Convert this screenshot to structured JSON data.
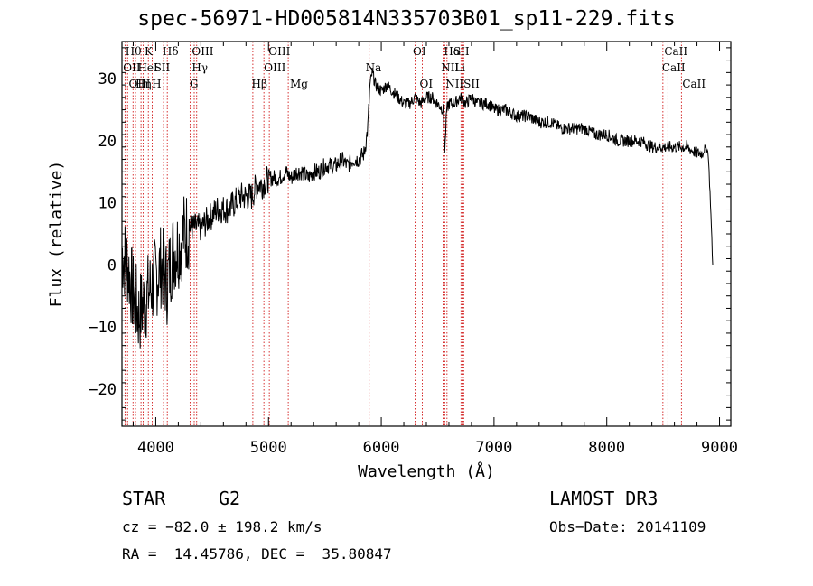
{
  "chart_data": {
    "type": "line",
    "title": "spec-56971-HD005814N335703B01_sp11-229.fits",
    "xlabel": "Wavelength (Å)",
    "ylabel": "Flux (relative)",
    "xlim": [
      3700,
      9100
    ],
    "ylim": [
      -26,
      36
    ],
    "x_ticks": [
      4000,
      5000,
      6000,
      7000,
      8000,
      9000
    ],
    "y_ticks": [
      -20,
      -10,
      0,
      10,
      20,
      30
    ],
    "series": [
      {
        "name": "flux",
        "x": [
          3700,
          3750,
          3800,
          3850,
          3900,
          3950,
          4000,
          4050,
          4100,
          4150,
          4200,
          4250,
          4300,
          4350,
          4400,
          4450,
          4500,
          4550,
          4600,
          4650,
          4700,
          4750,
          4800,
          4850,
          4900,
          4950,
          5000,
          5050,
          5100,
          5150,
          5200,
          5250,
          5300,
          5350,
          5400,
          5450,
          5500,
          5550,
          5600,
          5650,
          5700,
          5750,
          5800,
          5850,
          5880,
          5900,
          5920,
          5950,
          6000,
          6050,
          6100,
          6150,
          6200,
          6250,
          6300,
          6350,
          6400,
          6450,
          6500,
          6550,
          6563,
          6580,
          6600,
          6650,
          6700,
          6750,
          6800,
          6850,
          6900,
          6950,
          7000,
          7100,
          7200,
          7300,
          7400,
          7500,
          7600,
          7700,
          7800,
          7900,
          8000,
          8100,
          8200,
          8300,
          8400,
          8500,
          8600,
          8700,
          8800,
          8850,
          8880,
          8900,
          8920,
          8940
        ],
        "y": [
          2,
          0,
          -5,
          -8,
          -6,
          -4,
          -2,
          0,
          -3,
          2,
          3,
          5,
          6,
          6,
          6,
          7,
          8,
          9,
          9,
          9,
          10,
          11,
          11,
          11,
          13,
          13,
          14,
          14,
          14,
          15,
          14,
          15,
          15,
          14,
          15,
          15,
          16,
          16,
          16,
          17,
          16,
          17,
          17,
          18,
          22,
          29,
          31,
          29,
          28,
          29,
          28,
          27,
          26,
          26,
          27,
          26,
          27,
          27,
          26,
          25,
          18,
          25,
          26,
          26,
          27,
          26,
          27,
          26,
          26,
          26,
          25,
          25,
          24,
          24,
          23,
          23,
          22,
          22,
          22,
          21,
          21,
          20,
          20,
          20,
          19,
          19,
          19,
          19,
          18,
          18,
          19,
          18,
          10,
          0
        ]
      }
    ],
    "lines": [
      {
        "x": 3727,
        "label": "OII"
      },
      {
        "x": 3750,
        "label": "Hθ"
      },
      {
        "x": 3798,
        "label": "Hη"
      },
      {
        "x": 3820,
        "label": "Hη"
      },
      {
        "x": 3869,
        "label": "HeI"
      },
      {
        "x": 3889,
        "label": "Hζ"
      },
      {
        "x": 3934,
        "label": "K"
      },
      {
        "x": 3968,
        "label": "H"
      },
      {
        "x": 4069,
        "label": "SII"
      },
      {
        "x": 4102,
        "label": "Hδ"
      },
      {
        "x": 4304,
        "label": "G"
      },
      {
        "x": 4341,
        "label": "Hγ"
      },
      {
        "x": 4363,
        "label": "OIII"
      },
      {
        "x": 4861,
        "label": "Hβ"
      },
      {
        "x": 4959,
        "label": "OIII"
      },
      {
        "x": 5007,
        "label": "OIII"
      },
      {
        "x": 5175,
        "label": "Mg"
      },
      {
        "x": 5893,
        "label": "Na"
      },
      {
        "x": 6300,
        "label": "OI"
      },
      {
        "x": 6364,
        "label": "OI"
      },
      {
        "x": 6548,
        "label": "NII"
      },
      {
        "x": 6563,
        "label": "Hα"
      },
      {
        "x": 6583,
        "label": "NII"
      },
      {
        "x": 6707,
        "label": "Li"
      },
      {
        "x": 6716,
        "label": "SII"
      },
      {
        "x": 6731,
        "label": "SII"
      },
      {
        "x": 8498,
        "label": "CaII"
      },
      {
        "x": 8542,
        "label": "CaII"
      },
      {
        "x": 8662,
        "label": "CaII"
      }
    ],
    "line_labels": [
      {
        "x": 3730,
        "row": 0,
        "text": "Hθ"
      },
      {
        "x": 3710,
        "row": 1,
        "text": "OII"
      },
      {
        "x": 3840,
        "row": 1,
        "text": "HeI"
      },
      {
        "x": 3760,
        "row": 2,
        "text": "OIII"
      },
      {
        "x": 3820,
        "row": 2,
        "text": "Hη"
      },
      {
        "x": 3900,
        "row": 0,
        "text": "K"
      },
      {
        "x": 3965,
        "row": 2,
        "text": "H"
      },
      {
        "x": 3985,
        "row": 1,
        "text": "SII"
      },
      {
        "x": 4060,
        "row": 0,
        "text": "Hδ"
      },
      {
        "x": 4320,
        "row": 0,
        "text": "OIII"
      },
      {
        "x": 4320,
        "row": 1,
        "text": "Hγ"
      },
      {
        "x": 4300,
        "row": 2,
        "text": "G"
      },
      {
        "x": 4850,
        "row": 2,
        "text": "Hβ"
      },
      {
        "x": 5000,
        "row": 0,
        "text": "OIII"
      },
      {
        "x": 4960,
        "row": 1,
        "text": "OIII"
      },
      {
        "x": 5190,
        "row": 2,
        "text": "Mg"
      },
      {
        "x": 5860,
        "row": 1,
        "text": "Na"
      },
      {
        "x": 6280,
        "row": 0,
        "text": "OI"
      },
      {
        "x": 6340,
        "row": 2,
        "text": "OI"
      },
      {
        "x": 6555,
        "row": 0,
        "text": "Hα"
      },
      {
        "x": 6640,
        "row": 0,
        "text": "SII"
      },
      {
        "x": 6530,
        "row": 1,
        "text": "NII"
      },
      {
        "x": 6650,
        "row": 1,
        "text": "Li"
      },
      {
        "x": 6570,
        "row": 2,
        "text": "NIISII"
      },
      {
        "x": 8510,
        "row": 0,
        "text": "CaII"
      },
      {
        "x": 8490,
        "row": 1,
        "text": "CaII"
      },
      {
        "x": 8670,
        "row": 2,
        "text": "CaII"
      }
    ]
  },
  "info": {
    "object_class": "STAR",
    "subclass": "G2",
    "survey": "LAMOST DR3",
    "cz": "cz = −82.0 ± 198.2 km/s",
    "obs_date": "Obs−Date: 20141109",
    "coords": "RA =  14.45786, DEC =  35.80847"
  },
  "colors": {
    "spectrum": "#000000",
    "lines": "#cc0000",
    "axes": "#000000"
  }
}
